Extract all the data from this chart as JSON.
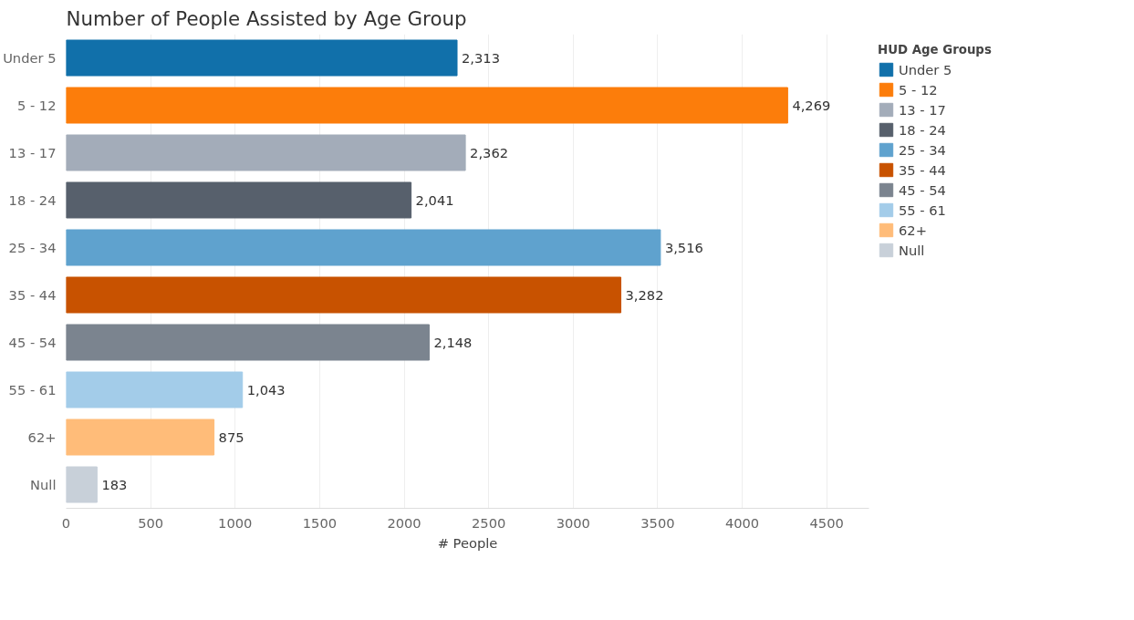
{
  "chart_data": {
    "type": "bar",
    "orientation": "horizontal",
    "title": "Number of People Assisted by Age Group",
    "xlabel": "# People",
    "legend_title": "HUD Age Groups",
    "legend": "top right",
    "categories": [
      "Under 5",
      "5 - 12",
      "13 - 17",
      "18 - 24",
      "25 - 34",
      "35 - 44",
      "45 - 54",
      "55 - 61",
      "62+",
      "Null"
    ],
    "series": [
      {
        "name": "Under 5",
        "color": "#1170aa",
        "values": [
          2313,
          null,
          null,
          null,
          null,
          null,
          null,
          null,
          null,
          null
        ],
        "value_labels": [
          "2,313",
          null,
          null,
          null,
          null,
          null,
          null,
          null,
          null,
          null
        ]
      },
      {
        "name": "5 - 12",
        "color": "#fc7d0b",
        "values": [
          null,
          4269,
          null,
          null,
          null,
          null,
          null,
          null,
          null,
          null
        ],
        "value_labels": [
          null,
          "4,269",
          null,
          null,
          null,
          null,
          null,
          null,
          null,
          null
        ]
      },
      {
        "name": "13 - 17",
        "color": "#a3acb9",
        "values": [
          null,
          null,
          2362,
          null,
          null,
          null,
          null,
          null,
          null,
          null
        ],
        "value_labels": [
          null,
          null,
          "2,362",
          null,
          null,
          null,
          null,
          null,
          null,
          null
        ]
      },
      {
        "name": "18 - 24",
        "color": "#57606c",
        "values": [
          null,
          null,
          null,
          2041,
          null,
          null,
          null,
          null,
          null,
          null
        ],
        "value_labels": [
          null,
          null,
          null,
          "2,041",
          null,
          null,
          null,
          null,
          null,
          null
        ]
      },
      {
        "name": "25 - 34",
        "color": "#5fa2ce",
        "values": [
          null,
          null,
          null,
          null,
          3516,
          null,
          null,
          null,
          null,
          null
        ],
        "value_labels": [
          null,
          null,
          null,
          null,
          "3,516",
          null,
          null,
          null,
          null,
          null
        ]
      },
      {
        "name": "35 - 44",
        "color": "#c85200",
        "values": [
          null,
          null,
          null,
          null,
          null,
          3282,
          null,
          null,
          null,
          null
        ],
        "value_labels": [
          null,
          null,
          null,
          null,
          null,
          "3,282",
          null,
          null,
          null,
          null
        ]
      },
      {
        "name": "45 - 54",
        "color": "#7b848f",
        "values": [
          null,
          null,
          null,
          null,
          null,
          null,
          2148,
          null,
          null,
          null
        ],
        "value_labels": [
          null,
          null,
          null,
          null,
          null,
          null,
          "2,148",
          null,
          null,
          null
        ]
      },
      {
        "name": "55 - 61",
        "color": "#a3cce9",
        "values": [
          null,
          null,
          null,
          null,
          null,
          null,
          null,
          1043,
          null,
          null
        ],
        "value_labels": [
          null,
          null,
          null,
          null,
          null,
          null,
          null,
          "1,043",
          null,
          null
        ]
      },
      {
        "name": "62+",
        "color": "#ffbc79",
        "values": [
          null,
          null,
          null,
          null,
          null,
          null,
          null,
          null,
          875,
          null
        ],
        "value_labels": [
          null,
          null,
          null,
          null,
          null,
          null,
          null,
          null,
          "875",
          null
        ]
      },
      {
        "name": "Null",
        "color": "#c8d0d9",
        "values": [
          null,
          null,
          null,
          null,
          null,
          null,
          null,
          null,
          null,
          183
        ],
        "value_labels": [
          null,
          null,
          null,
          null,
          null,
          null,
          null,
          null,
          null,
          "183"
        ]
      }
    ],
    "xlim": [
      0,
      4750
    ],
    "xticks": [
      0,
      500,
      1000,
      1500,
      2000,
      2500,
      3000,
      3500,
      4000,
      4500
    ],
    "grid": "x"
  }
}
